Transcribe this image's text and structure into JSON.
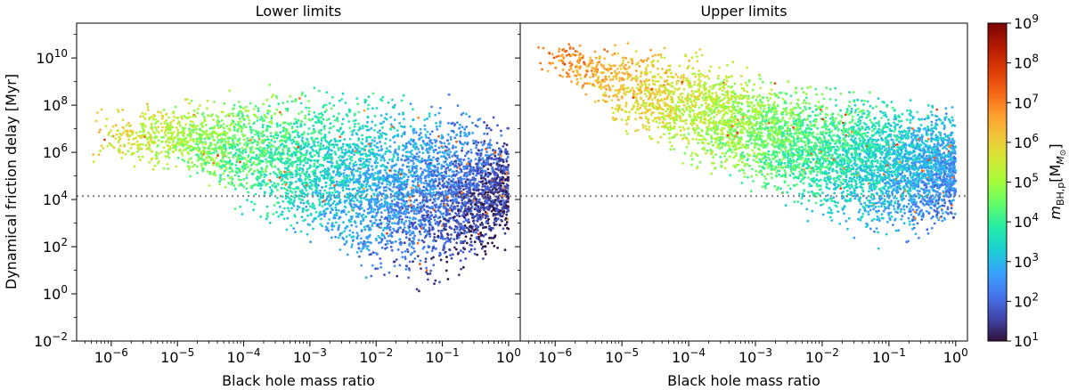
{
  "chart_data": [
    {
      "type": "scatter",
      "title": "Lower limits",
      "xlabel": "Black hole mass ratio",
      "ylabel": "Dynamical friction delay [Myr]",
      "xscale": "log",
      "yscale": "log",
      "xlim": [
        3e-07,
        1.5
      ],
      "ylim": [
        0.01,
        300000000000.0
      ],
      "xticks": [
        {
          "v": 1e-06,
          "label": "10",
          "exp": "−6"
        },
        {
          "v": 1e-05,
          "label": "10",
          "exp": "−5"
        },
        {
          "v": 0.0001,
          "label": "10",
          "exp": "−4"
        },
        {
          "v": 0.001,
          "label": "10",
          "exp": "−3"
        },
        {
          "v": 0.01,
          "label": "10",
          "exp": "−2"
        },
        {
          "v": 0.1,
          "label": "10",
          "exp": "−1"
        },
        {
          "v": 1,
          "label": "10",
          "exp": "0"
        }
      ],
      "yticks": [
        {
          "v": 0.01,
          "label": "10",
          "exp": "−2"
        },
        {
          "v": 1,
          "label": "10",
          "exp": "0"
        },
        {
          "v": 100.0,
          "label": "10",
          "exp": "2"
        },
        {
          "v": 10000.0,
          "label": "10",
          "exp": "4"
        },
        {
          "v": 1000000.0,
          "label": "10",
          "exp": "6"
        },
        {
          "v": 100000000.0,
          "label": "10",
          "exp": "8"
        },
        {
          "v": 10000000000.0,
          "label": "10",
          "exp": "10"
        }
      ],
      "reference_line_y": 14000,
      "point_density": {
        "x_range": [
          5e-07,
          1.0
        ],
        "upper_envelope": [
          [
            1e-06,
            50000000.0
          ],
          [
            1e-05,
            100000000.0
          ],
          [
            0.0001,
            200000000.0
          ],
          [
            0.001,
            150000000.0
          ],
          [
            0.01,
            80000000.0
          ],
          [
            0.1,
            30000000.0
          ],
          [
            1,
            5000000.0
          ]
        ],
        "lower_envelope": [
          [
            1e-06,
            100000.0
          ],
          [
            1e-05,
            30000.0
          ],
          [
            0.0001,
            300.0
          ],
          [
            0.001,
            5
          ],
          [
            0.01,
            0.1
          ],
          [
            0.1,
            0.1
          ],
          [
            1,
            10
          ]
        ]
      },
      "color_trend": "mass decreases with mass ratio; orange at 1e-6..1e-4, green near 1e-3, blue near 1"
    },
    {
      "type": "scatter",
      "title": "Upper limits",
      "xlabel": "Black hole mass ratio",
      "xscale": "log",
      "yscale": "log",
      "xlim": [
        3e-07,
        1.5
      ],
      "ylim": [
        0.01,
        300000000000.0
      ],
      "xticks": [
        {
          "v": 1e-06,
          "label": "10",
          "exp": "−6"
        },
        {
          "v": 1e-05,
          "label": "10",
          "exp": "−5"
        },
        {
          "v": 0.0001,
          "label": "10",
          "exp": "−4"
        },
        {
          "v": 0.001,
          "label": "10",
          "exp": "−3"
        },
        {
          "v": 0.01,
          "label": "10",
          "exp": "−2"
        },
        {
          "v": 0.1,
          "label": "10",
          "exp": "−1"
        },
        {
          "v": 1,
          "label": "10",
          "exp": "0"
        }
      ],
      "reference_line_y": 14000,
      "point_density": {
        "x_range": [
          5e-07,
          1.0
        ],
        "upper_envelope": [
          [
            1e-06,
            50000000000.0
          ],
          [
            1e-05,
            30000000000.0
          ],
          [
            0.0001,
            10000000000.0
          ],
          [
            0.001,
            1000000000.0
          ],
          [
            0.01,
            300000000.0
          ],
          [
            0.1,
            100000000.0
          ],
          [
            1,
            30000000.0
          ]
        ],
        "lower_envelope": [
          [
            1e-06,
            1000000000.0
          ],
          [
            1e-05,
            1000000.0
          ],
          [
            0.0001,
            30000.0
          ],
          [
            0.001,
            3000.0
          ],
          [
            0.01,
            100.0
          ],
          [
            0.1,
            10
          ],
          [
            1,
            50
          ]
        ]
      },
      "color_trend": "mass decreases with mass ratio; red/orange at 1e-6..1e-4, green near 1e-3, blue near 1"
    }
  ],
  "colorbar": {
    "label_main": "m",
    "label_sub": "BH,p",
    "label_unit": "[M",
    "label_unit_sub": "⊙",
    "label_close": "]",
    "scale": "log",
    "range": [
      10,
      1000000000.0
    ],
    "ticks": [
      {
        "v": 10.0,
        "label": "10",
        "exp": "1"
      },
      {
        "v": 100.0,
        "label": "10",
        "exp": "2"
      },
      {
        "v": 1000.0,
        "label": "10",
        "exp": "3"
      },
      {
        "v": 10000.0,
        "label": "10",
        "exp": "4"
      },
      {
        "v": 100000.0,
        "label": "10",
        "exp": "5"
      },
      {
        "v": 1000000.0,
        "label": "10",
        "exp": "6"
      },
      {
        "v": 10000000.0,
        "label": "10",
        "exp": "7"
      },
      {
        "v": 100000000.0,
        "label": "10",
        "exp": "8"
      },
      {
        "v": 1000000000.0,
        "label": "10",
        "exp": "9"
      }
    ],
    "colormap": "turbo",
    "colormap_stops": [
      "#30123b",
      "#4145ab",
      "#4675ed",
      "#39a2fc",
      "#1bcfd4",
      "#24eca6",
      "#61fc6c",
      "#a4fc3b",
      "#d1e834",
      "#f3c63a",
      "#fe9b2d",
      "#f36315",
      "#d93806",
      "#b11901",
      "#7a0403"
    ]
  }
}
